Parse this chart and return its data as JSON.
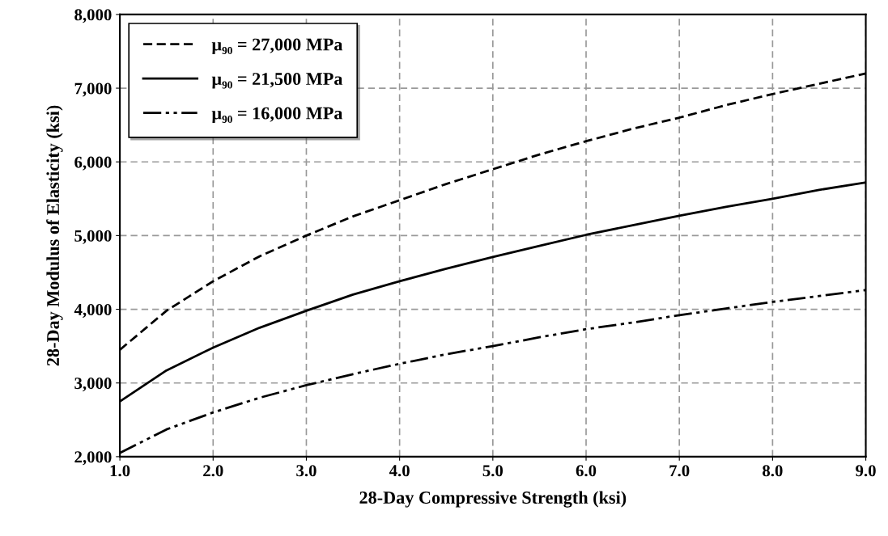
{
  "chart_data": {
    "type": "line",
    "xlabel": "28-Day Compressive Strength (ksi)",
    "ylabel": "28-Day Modulus of Elasticity (ksi)",
    "x": [
      1.0,
      1.5,
      2.0,
      2.5,
      3.0,
      3.5,
      4.0,
      4.5,
      5.0,
      5.5,
      6.0,
      6.5,
      7.0,
      7.5,
      8.0,
      8.5,
      9.0
    ],
    "series": [
      {
        "name": "μ₉₀ = 27,000 MPa",
        "color": "#000000",
        "line_style": "dashed",
        "values": [
          3450,
          3980,
          4380,
          4720,
          5000,
          5260,
          5480,
          5700,
          5900,
          6100,
          6280,
          6450,
          6600,
          6770,
          6920,
          7060,
          7200
        ]
      },
      {
        "name": "μ₉₀ = 21,500 MPa",
        "color": "#000000",
        "line_style": "solid",
        "values": [
          2750,
          3170,
          3480,
          3750,
          3980,
          4200,
          4380,
          4550,
          4710,
          4860,
          5010,
          5140,
          5270,
          5390,
          5500,
          5620,
          5720
        ]
      },
      {
        "name": "μ₉₀ = 16,000 MPa",
        "color": "#000000",
        "line_style": "dashdotdot",
        "values": [
          2050,
          2370,
          2600,
          2800,
          2970,
          3120,
          3260,
          3390,
          3500,
          3620,
          3730,
          3820,
          3920,
          4010,
          4100,
          4180,
          4260
        ]
      }
    ],
    "xlim": [
      1.0,
      9.0
    ],
    "xticks": [
      {
        "value": 1,
        "label": "1.0"
      },
      {
        "value": 2,
        "label": "2.0"
      },
      {
        "value": 3,
        "label": "3.0"
      },
      {
        "value": 4,
        "label": "4.0"
      },
      {
        "value": 5,
        "label": "5.0"
      },
      {
        "value": 6,
        "label": "6.0"
      },
      {
        "value": 7,
        "label": "7.0"
      },
      {
        "value": 8,
        "label": "8.0"
      },
      {
        "value": 9,
        "label": "9.0"
      }
    ],
    "ylim": [
      2000,
      8000
    ],
    "yticks": [
      {
        "value": 2000,
        "label": "2,000"
      },
      {
        "value": 3000,
        "label": "3,000"
      },
      {
        "value": 4000,
        "label": "4,000"
      },
      {
        "value": 5000,
        "label": "5,000"
      },
      {
        "value": 6000,
        "label": "6,000"
      },
      {
        "value": 7000,
        "label": "7,000"
      },
      {
        "value": 8000,
        "label": "8,000"
      }
    ],
    "grid": true,
    "legend": "top left",
    "marker": "none"
  }
}
